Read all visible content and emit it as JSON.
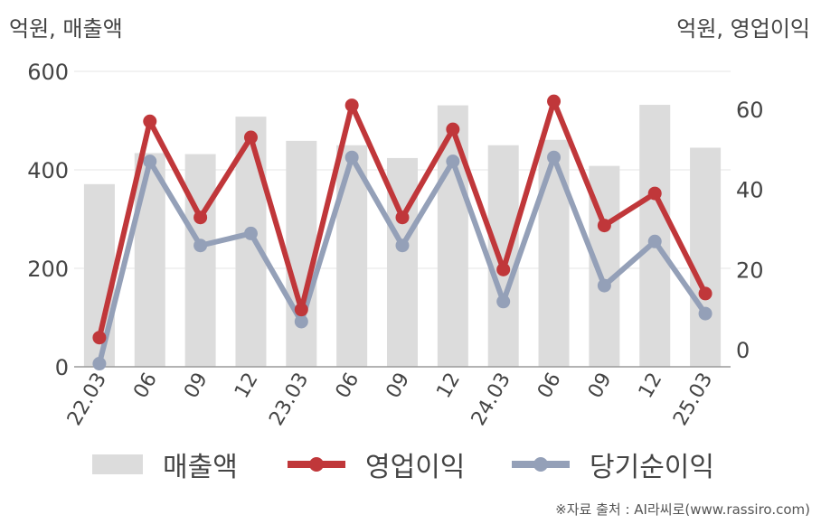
{
  "left_unit": "억원, 매출액",
  "right_unit": "억원, 영업이익",
  "source": "※자료 출처 : AI라씨로(www.rassiro.com)",
  "legend": {
    "revenue": "매출액",
    "operating": "영업이익",
    "net": "당기순이익"
  },
  "colors": {
    "bar": "#dcdcdc",
    "operating": "#c0373a",
    "net": "#94a0b8"
  },
  "chart_data": {
    "type": "bar",
    "categories": [
      "22.03",
      "06",
      "09",
      "12",
      "23.03",
      "06",
      "09",
      "12",
      "24.03",
      "06",
      "09",
      "12",
      "25.03"
    ],
    "left_axis": {
      "ylim": [
        0,
        600
      ],
      "ticks": [
        0,
        200,
        400,
        600
      ]
    },
    "right_axis": {
      "ylim": [
        -4,
        70
      ],
      "ticks": [
        0,
        20,
        40,
        60
      ]
    },
    "series": [
      {
        "name": "매출액",
        "type": "bar",
        "axis": "left",
        "values": [
          371,
          434,
          432,
          508,
          459,
          450,
          424,
          531,
          450,
          461,
          408,
          532,
          445
        ]
      },
      {
        "name": "영업이익",
        "type": "line",
        "axis": "right",
        "values": [
          3,
          57,
          33,
          53,
          10,
          61,
          33,
          55,
          20,
          62,
          31,
          39,
          14
        ]
      },
      {
        "name": "당기순이익",
        "type": "line",
        "axis": "right",
        "values": [
          -3.5,
          47,
          26,
          29,
          7,
          48,
          26,
          47,
          12,
          48,
          16,
          27,
          9
        ]
      }
    ],
    "grid": true,
    "legend_position": "bottom"
  }
}
